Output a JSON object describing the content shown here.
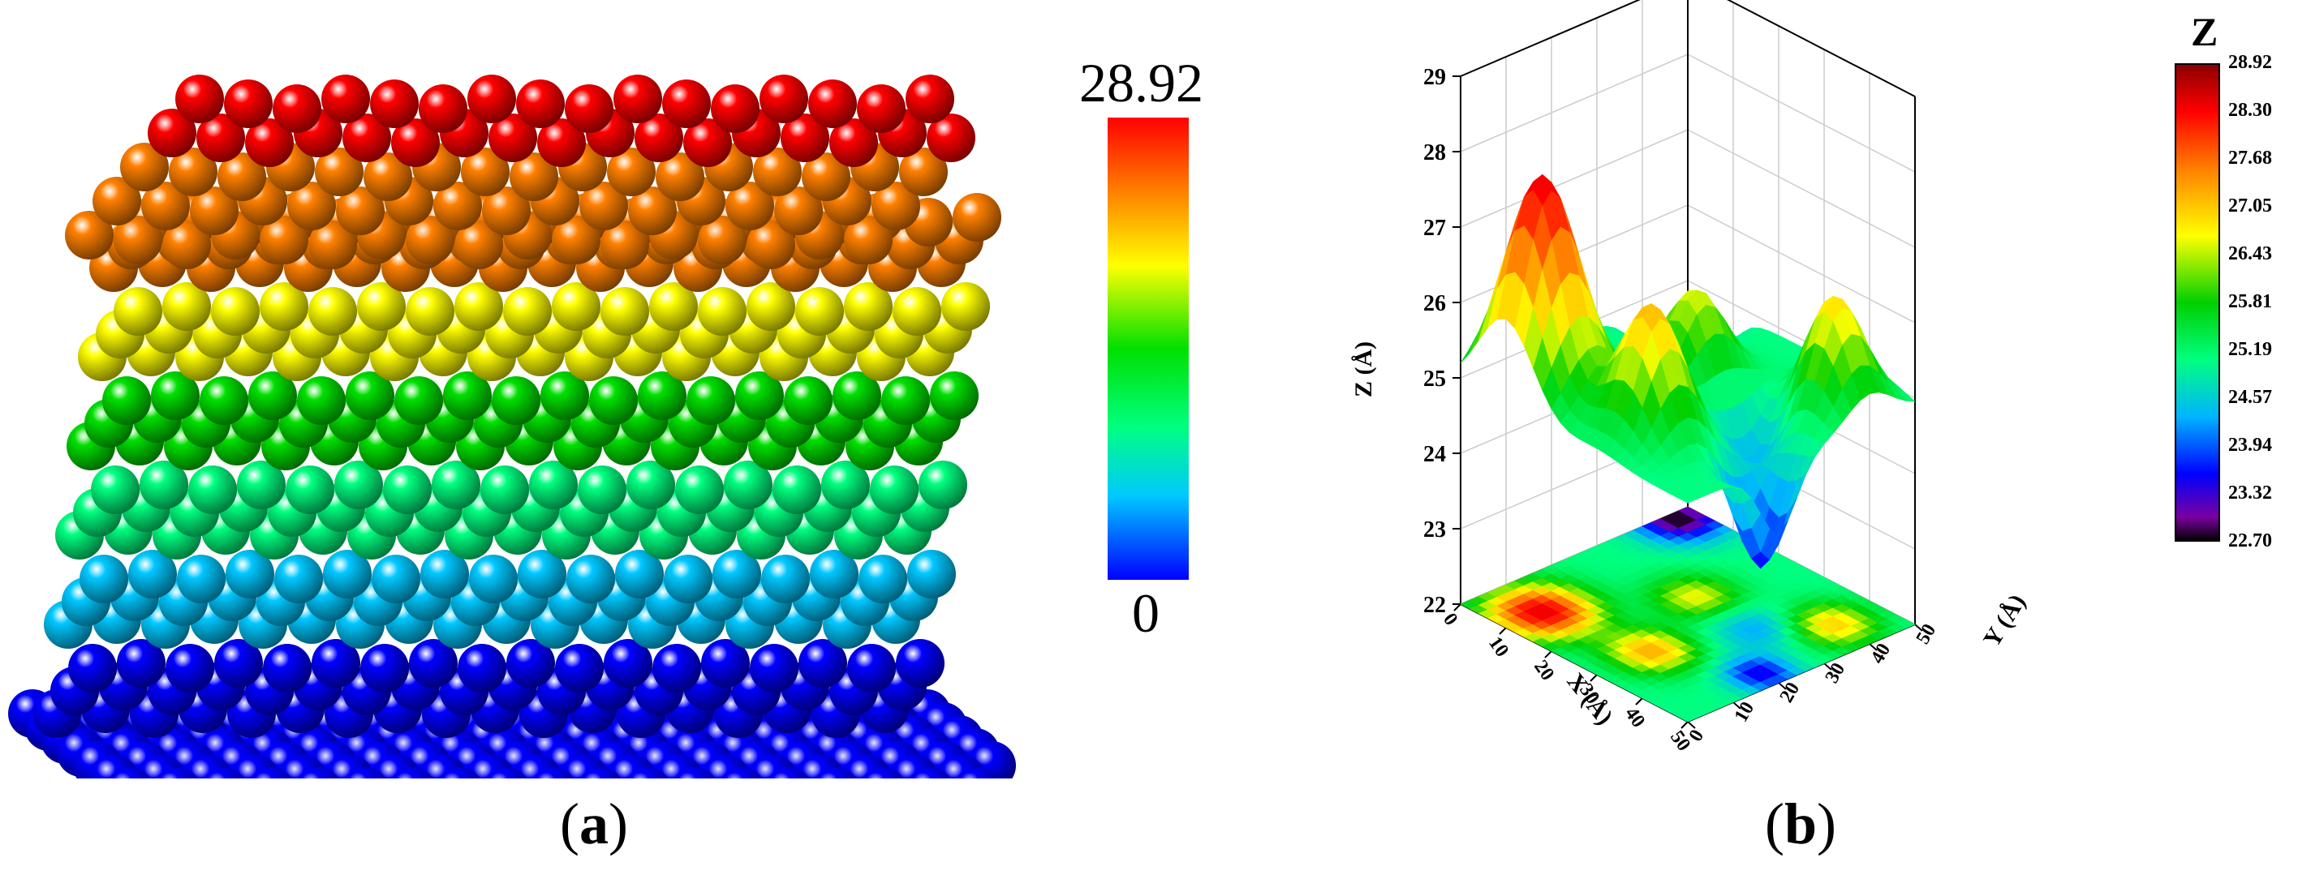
{
  "panel_a": {
    "caption_open": "(",
    "caption_letter": "a",
    "caption_close": ")",
    "colorbar_max_label": "28.92",
    "colorbar_min_label": "0",
    "colormap": [
      "#0000ff",
      "#00c8ff",
      "#00ff80",
      "#00e000",
      "#ffff00",
      "#ff8000",
      "#ff0000"
    ]
  },
  "panel_b": {
    "caption_open": "(",
    "caption_letter": "b",
    "caption_close": ")",
    "z_axis_label": "Z (Å)",
    "x_axis_label": "X (Å)",
    "y_axis_label": "Y (Å)",
    "z_ticks": [
      "22",
      "23",
      "24",
      "25",
      "26",
      "27",
      "28",
      "29"
    ],
    "x_ticks": [
      "0",
      "10",
      "20",
      "30",
      "40",
      "50"
    ],
    "y_ticks": [
      "0",
      "10",
      "20",
      "30",
      "40",
      "50"
    ],
    "colorbar_title": "Z",
    "colorbar_ticks": [
      "28.92",
      "28.30",
      "27.68",
      "27.05",
      "26.43",
      "25.81",
      "25.19",
      "24.57",
      "23.94",
      "23.32",
      "22.70"
    ],
    "colormap": [
      "#000000",
      "#7a00a0",
      "#0000ff",
      "#00b4ff",
      "#00ff80",
      "#00d000",
      "#ffff00",
      "#ff8000",
      "#ff0000",
      "#8b0000"
    ]
  },
  "chart_data": [
    {
      "type": "scatter",
      "title": "",
      "description_marks": "3D atom rendering coloured by height",
      "colorbar": {
        "min": 0,
        "max": 28.92
      }
    },
    {
      "type": "heatmap",
      "title": "",
      "xlabel": "X (Å)",
      "ylabel": "Y (Å)",
      "zlabel": "Z (Å)",
      "x_range": [
        0,
        50
      ],
      "y_range": [
        0,
        50
      ],
      "z_range": [
        22,
        29
      ],
      "colorbar": {
        "title": "Z",
        "min": 22.7,
        "max": 28.92
      },
      "surface_peaks": [
        {
          "x": 12,
          "y": 8,
          "z": 27.8
        },
        {
          "x": 30,
          "y": 12,
          "z": 26.6
        },
        {
          "x": 40,
          "y": 40,
          "z": 26.4
        }
      ],
      "surface_minimum": {
        "x": 0,
        "y": 48,
        "z": 22.7
      }
    }
  ]
}
